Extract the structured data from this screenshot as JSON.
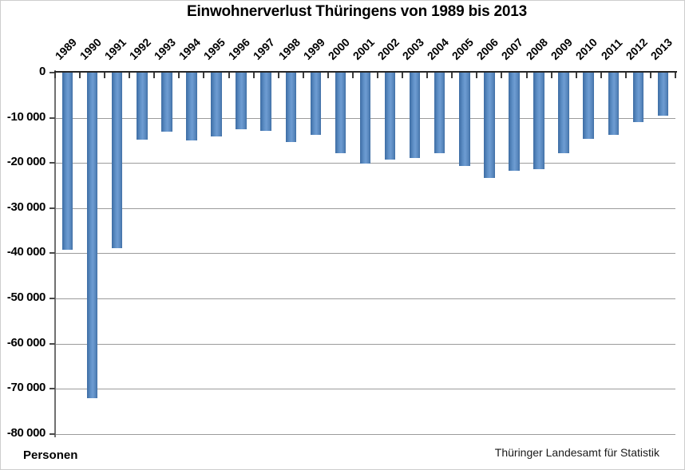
{
  "chart_data": {
    "type": "bar",
    "title": "Einwohnerverlust Thüringens von 1989 bis 2013",
    "ylabel": "Personen",
    "source": "Thüringer Landesamt für Statistik",
    "categories": [
      "1989",
      "1990",
      "1991",
      "1992",
      "1993",
      "1994",
      "1995",
      "1996",
      "1997",
      "1998",
      "1999",
      "2000",
      "2001",
      "2002",
      "2003",
      "2004",
      "2005",
      "2006",
      "2007",
      "2008",
      "2009",
      "2010",
      "2011",
      "2012",
      "2013"
    ],
    "values": [
      -39300,
      -72100,
      -38900,
      -14800,
      -13100,
      -15100,
      -14100,
      -12600,
      -12900,
      -15300,
      -13700,
      -17900,
      -20200,
      -19300,
      -18900,
      -17900,
      -20700,
      -23400,
      -21800,
      -21300,
      -17800,
      -14700,
      -13800,
      -11000,
      -9500
    ],
    "ylim": [
      -80000,
      0
    ],
    "ytick_interval": 10000,
    "ytick_labels": [
      "0",
      "-10 000",
      "-20 000",
      "-30 000",
      "-40 000",
      "-50 000",
      "-60 000",
      "-70 000",
      "-80 000"
    ],
    "grid": true,
    "legend": "none",
    "bar_color": "#4f81bd",
    "gridline_color": "#9c9c9c",
    "axis_color": "#262626"
  }
}
